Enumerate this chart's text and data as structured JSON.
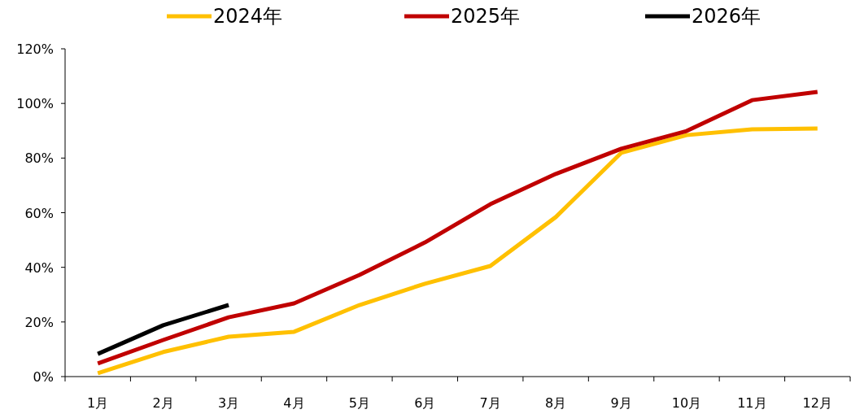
{
  "chart_data": {
    "type": "line",
    "categories": [
      "1月",
      "2月",
      "3月",
      "4月",
      "5月",
      "6月",
      "7月",
      "8月",
      "9月",
      "10月",
      "11月",
      "12月"
    ],
    "series": [
      {
        "name": "2024年",
        "color": "#ffc000",
        "values": [
          1.2,
          9,
          14.6,
          16.4,
          26.2,
          34,
          40.5,
          58.4,
          81.9,
          88.4,
          90.5,
          90.8
        ]
      },
      {
        "name": "2025年",
        "color": "#c00000",
        "values": [
          4.8,
          13.4,
          21.7,
          26.8,
          37.2,
          49.1,
          63.1,
          74.2,
          83.4,
          89.9,
          101.2,
          104.2
        ]
      },
      {
        "name": "2026年",
        "color": "#000000",
        "values": [
          8.3,
          18.8,
          26.2,
          null,
          null,
          null,
          null,
          null,
          null,
          null,
          null,
          null
        ]
      }
    ],
    "ylim": [
      0,
      120
    ],
    "yticks": [
      {
        "value": 0,
        "label": "0%"
      },
      {
        "value": 20,
        "label": "20%"
      },
      {
        "value": 40,
        "label": "40%"
      },
      {
        "value": 60,
        "label": "60%"
      },
      {
        "value": 80,
        "label": "80%"
      },
      {
        "value": 100,
        "label": "100%"
      },
      {
        "value": 120,
        "label": "120%"
      }
    ],
    "legend": "top",
    "grid": false
  }
}
